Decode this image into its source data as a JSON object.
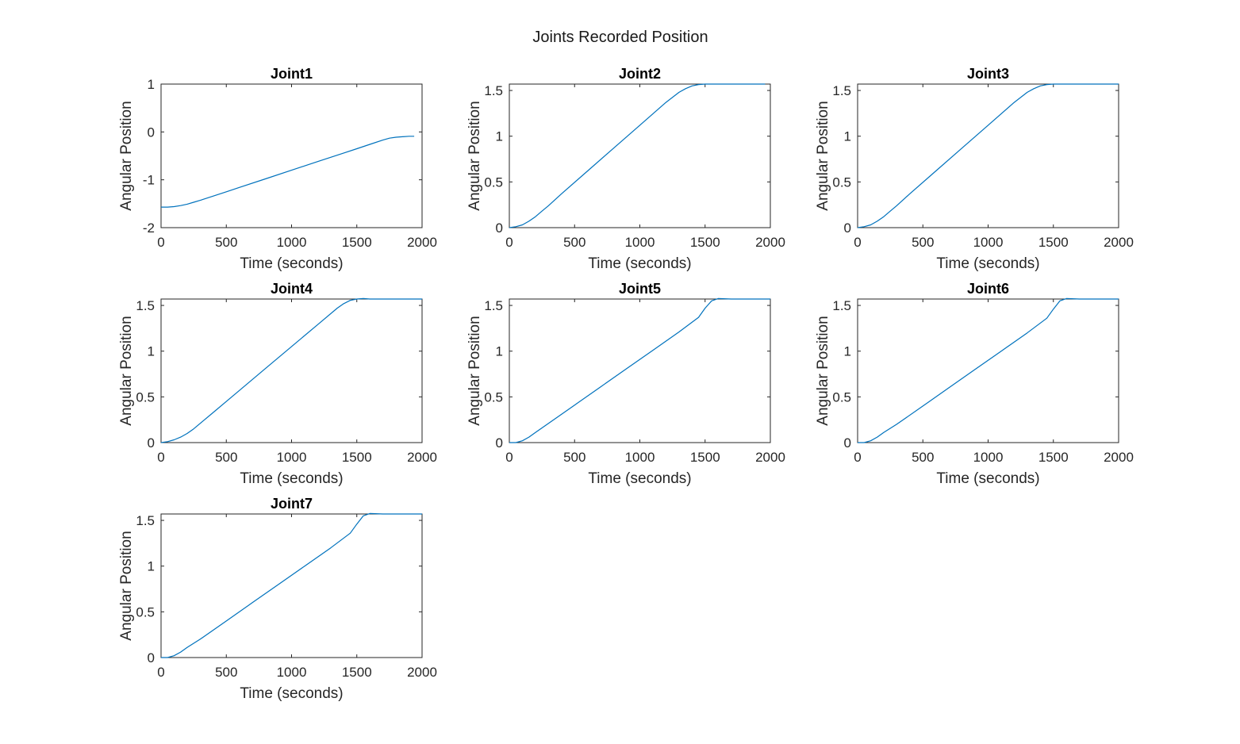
{
  "figure": {
    "title": "Joints Recorded Position",
    "line_color": "#0072BD",
    "axis_color": "#262626"
  },
  "chart_data": [
    {
      "type": "line",
      "title": "Joint1",
      "xlabel": "Time (seconds)",
      "ylabel": "Angular Position",
      "xlim": [
        0,
        2000
      ],
      "ylim": [
        -2,
        1
      ],
      "xticks": [
        0,
        500,
        1000,
        1500,
        2000
      ],
      "xtick_labels": [
        "0",
        "500",
        "1000",
        "1500",
        "2000"
      ],
      "yticks": [
        -2,
        -1,
        0,
        1
      ],
      "ytick_labels": [
        "-2",
        "-1",
        "0",
        "1"
      ],
      "grid": false,
      "series": [
        {
          "x": [
            0,
            50,
            100,
            150,
            200,
            250,
            300,
            400,
            500,
            600,
            800,
            1000,
            1200,
            1400,
            1500,
            1600,
            1700,
            1750,
            1800,
            1850,
            1900,
            1940
          ],
          "y": [
            -1.57,
            -1.57,
            -1.56,
            -1.54,
            -1.51,
            -1.47,
            -1.43,
            -1.34,
            -1.25,
            -1.16,
            -0.98,
            -0.8,
            -0.62,
            -0.44,
            -0.35,
            -0.26,
            -0.17,
            -0.13,
            -0.11,
            -0.1,
            -0.09,
            -0.09
          ]
        }
      ]
    },
    {
      "type": "line",
      "title": "Joint2",
      "xlabel": "Time (seconds)",
      "ylabel": "Angular Position",
      "xlim": [
        0,
        2000
      ],
      "ylim": [
        0,
        1.57
      ],
      "xticks": [
        0,
        500,
        1000,
        1500,
        2000
      ],
      "xtick_labels": [
        "0",
        "500",
        "1000",
        "1500",
        "2000"
      ],
      "yticks": [
        0,
        0.5,
        1,
        1.5
      ],
      "ytick_labels": [
        "0",
        "0.5",
        "1",
        "1.5"
      ],
      "grid": false,
      "series": [
        {
          "x": [
            0,
            50,
            100,
            150,
            200,
            250,
            300,
            400,
            600,
            800,
            1000,
            1200,
            1300,
            1350,
            1400,
            1450,
            1500,
            1550,
            1600,
            1800,
            1960
          ],
          "y": [
            0,
            0.01,
            0.03,
            0.07,
            0.12,
            0.18,
            0.24,
            0.37,
            0.62,
            0.87,
            1.12,
            1.37,
            1.48,
            1.52,
            1.55,
            1.565,
            1.57,
            1.57,
            1.57,
            1.57,
            1.57
          ]
        }
      ]
    },
    {
      "type": "line",
      "title": "Joint3",
      "xlabel": "Time (seconds)",
      "ylabel": "Angular Position",
      "xlim": [
        0,
        2000
      ],
      "ylim": [
        0,
        1.57
      ],
      "xticks": [
        0,
        500,
        1000,
        1500,
        2000
      ],
      "xtick_labels": [
        "0",
        "500",
        "1000",
        "1500",
        "2000"
      ],
      "yticks": [
        0,
        0.5,
        1,
        1.5
      ],
      "ytick_labels": [
        "0",
        "0.5",
        "1",
        "1.5"
      ],
      "grid": false,
      "series": [
        {
          "x": [
            0,
            50,
            100,
            150,
            200,
            250,
            300,
            400,
            600,
            800,
            1000,
            1200,
            1300,
            1350,
            1400,
            1450,
            1500,
            1550,
            1600,
            1800,
            2000
          ],
          "y": [
            0,
            0.01,
            0.03,
            0.07,
            0.12,
            0.18,
            0.24,
            0.37,
            0.62,
            0.87,
            1.12,
            1.37,
            1.48,
            1.52,
            1.55,
            1.565,
            1.57,
            1.57,
            1.57,
            1.57,
            1.57
          ]
        }
      ]
    },
    {
      "type": "line",
      "title": "Joint4",
      "xlabel": "Time (seconds)",
      "ylabel": "Angular Position",
      "xlim": [
        0,
        2000
      ],
      "ylim": [
        0,
        1.57
      ],
      "xticks": [
        0,
        500,
        1000,
        1500,
        2000
      ],
      "xtick_labels": [
        "0",
        "500",
        "1000",
        "1500",
        "2000"
      ],
      "yticks": [
        0,
        0.5,
        1,
        1.5
      ],
      "ytick_labels": [
        "0",
        "0.5",
        "1",
        "1.5"
      ],
      "grid": false,
      "series": [
        {
          "x": [
            0,
            50,
            100,
            150,
            200,
            250,
            300,
            400,
            600,
            800,
            1000,
            1200,
            1350,
            1400,
            1450,
            1500,
            1550,
            1600,
            1800,
            2000
          ],
          "y": [
            0,
            0.01,
            0.03,
            0.06,
            0.1,
            0.15,
            0.21,
            0.33,
            0.57,
            0.81,
            1.05,
            1.29,
            1.47,
            1.52,
            1.555,
            1.57,
            1.575,
            1.57,
            1.57,
            1.57
          ]
        }
      ]
    },
    {
      "type": "line",
      "title": "Joint5",
      "xlabel": "Time (seconds)",
      "ylabel": "Angular Position",
      "xlim": [
        0,
        2000
      ],
      "ylim": [
        0,
        1.57
      ],
      "xticks": [
        0,
        500,
        1000,
        1500,
        2000
      ],
      "xtick_labels": [
        "0",
        "500",
        "1000",
        "1500",
        "2000"
      ],
      "yticks": [
        0,
        0.5,
        1,
        1.5
      ],
      "ytick_labels": [
        "0",
        "0.5",
        "1",
        "1.5"
      ],
      "grid": false,
      "series": [
        {
          "x": [
            0,
            50,
            100,
            150,
            200,
            300,
            500,
            700,
            900,
            1100,
            1300,
            1450,
            1500,
            1550,
            1600,
            1700,
            1800,
            2000
          ],
          "y": [
            0,
            0.0,
            0.02,
            0.06,
            0.11,
            0.21,
            0.41,
            0.61,
            0.81,
            1.01,
            1.21,
            1.37,
            1.47,
            1.55,
            1.575,
            1.57,
            1.57,
            1.57
          ]
        }
      ]
    },
    {
      "type": "line",
      "title": "Joint6",
      "xlabel": "Time (seconds)",
      "ylabel": "Angular Position",
      "xlim": [
        0,
        2000
      ],
      "ylim": [
        0,
        1.57
      ],
      "xticks": [
        0,
        500,
        1000,
        1500,
        2000
      ],
      "xtick_labels": [
        "0",
        "500",
        "1000",
        "1500",
        "2000"
      ],
      "yticks": [
        0,
        0.5,
        1,
        1.5
      ],
      "ytick_labels": [
        "0",
        "0.5",
        "1",
        "1.5"
      ],
      "grid": false,
      "series": [
        {
          "x": [
            0,
            50,
            100,
            150,
            200,
            300,
            500,
            700,
            900,
            1100,
            1300,
            1450,
            1500,
            1550,
            1600,
            1700,
            1800,
            2000
          ],
          "y": [
            0,
            0.0,
            0.02,
            0.06,
            0.11,
            0.2,
            0.4,
            0.6,
            0.8,
            1.0,
            1.2,
            1.36,
            1.46,
            1.55,
            1.575,
            1.57,
            1.57,
            1.57
          ]
        }
      ]
    },
    {
      "type": "line",
      "title": "Joint7",
      "xlabel": "Time (seconds)",
      "ylabel": "Angular Position",
      "xlim": [
        0,
        2000
      ],
      "ylim": [
        0,
        1.57
      ],
      "xticks": [
        0,
        500,
        1000,
        1500,
        2000
      ],
      "xtick_labels": [
        "0",
        "500",
        "1000",
        "1500",
        "2000"
      ],
      "yticks": [
        0,
        0.5,
        1,
        1.5
      ],
      "ytick_labels": [
        "0",
        "0.5",
        "1",
        "1.5"
      ],
      "grid": false,
      "series": [
        {
          "x": [
            0,
            50,
            100,
            150,
            200,
            300,
            500,
            700,
            900,
            1100,
            1300,
            1450,
            1500,
            1550,
            1600,
            1700,
            1800,
            2000
          ],
          "y": [
            0,
            0.0,
            0.02,
            0.06,
            0.11,
            0.2,
            0.4,
            0.6,
            0.8,
            1.0,
            1.2,
            1.36,
            1.46,
            1.55,
            1.575,
            1.57,
            1.57,
            1.57
          ]
        }
      ]
    }
  ]
}
